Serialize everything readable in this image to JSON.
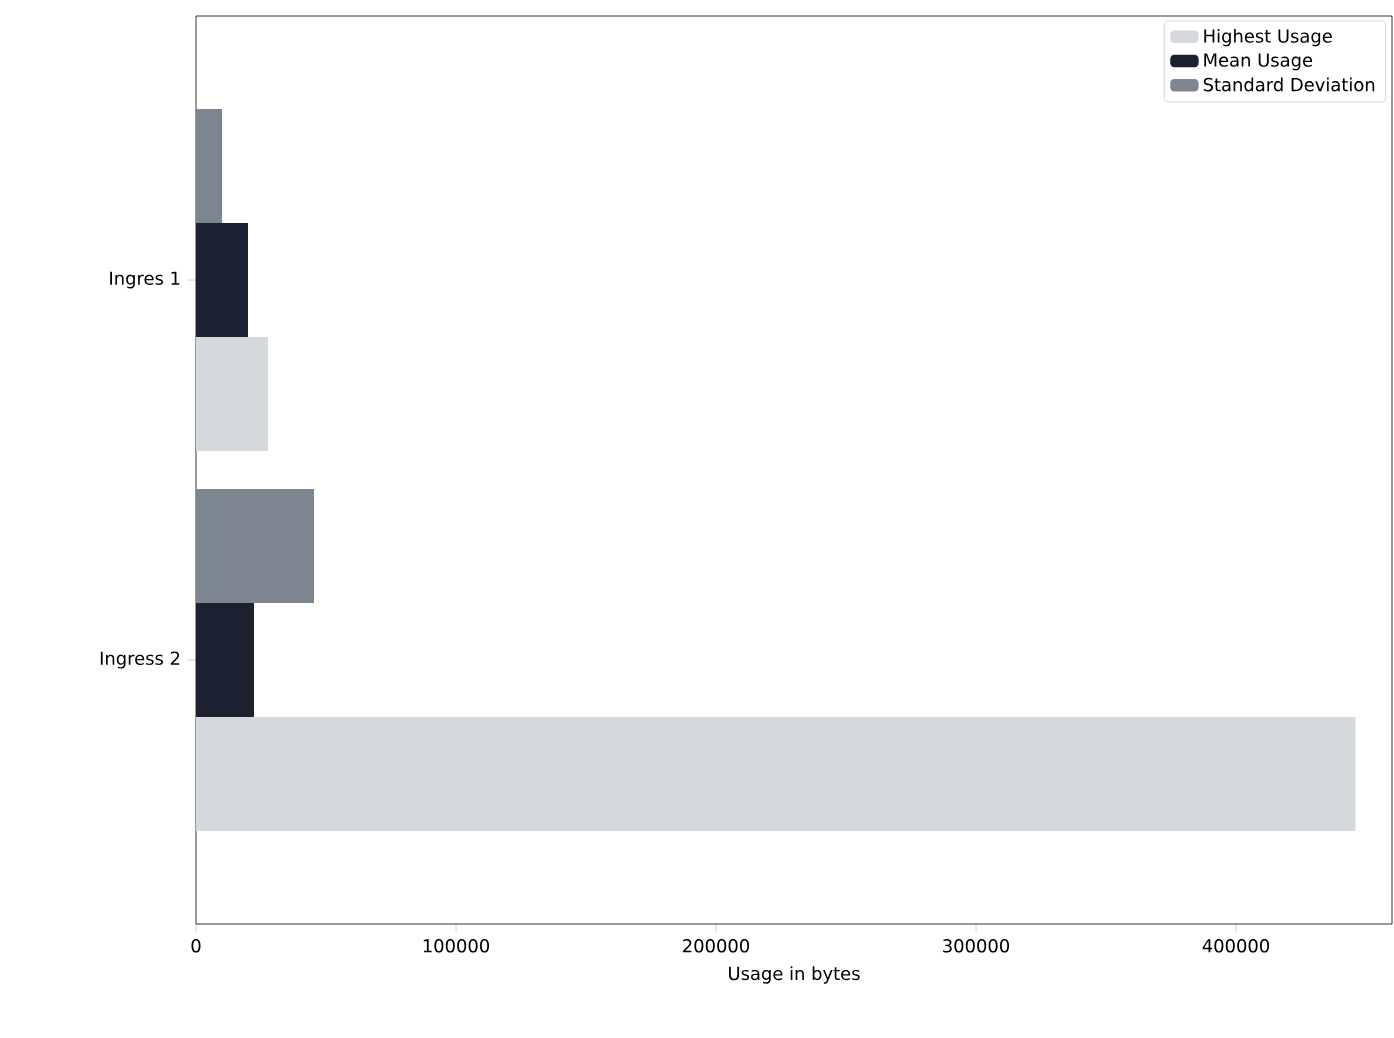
{
  "chart_data": {
    "type": "bar",
    "orientation": "horizontal",
    "xlabel": "Usage in bytes",
    "categories": [
      "Ingres 1",
      "Ingress 2"
    ],
    "series": [
      {
        "name": "Highest Usage",
        "color": "#d5d8dc",
        "values": [
          27700,
          446000
        ]
      },
      {
        "name": "Mean Usage",
        "color": "#1b2130",
        "values": [
          20000,
          22300
        ]
      },
      {
        "name": "Standard Deviation",
        "color": "#7d8590",
        "values": [
          10000,
          45400
        ]
      }
    ],
    "xlim": [
      0,
      460000
    ],
    "xticks": [
      0,
      100000,
      200000,
      300000,
      400000
    ],
    "legend": "top right"
  }
}
